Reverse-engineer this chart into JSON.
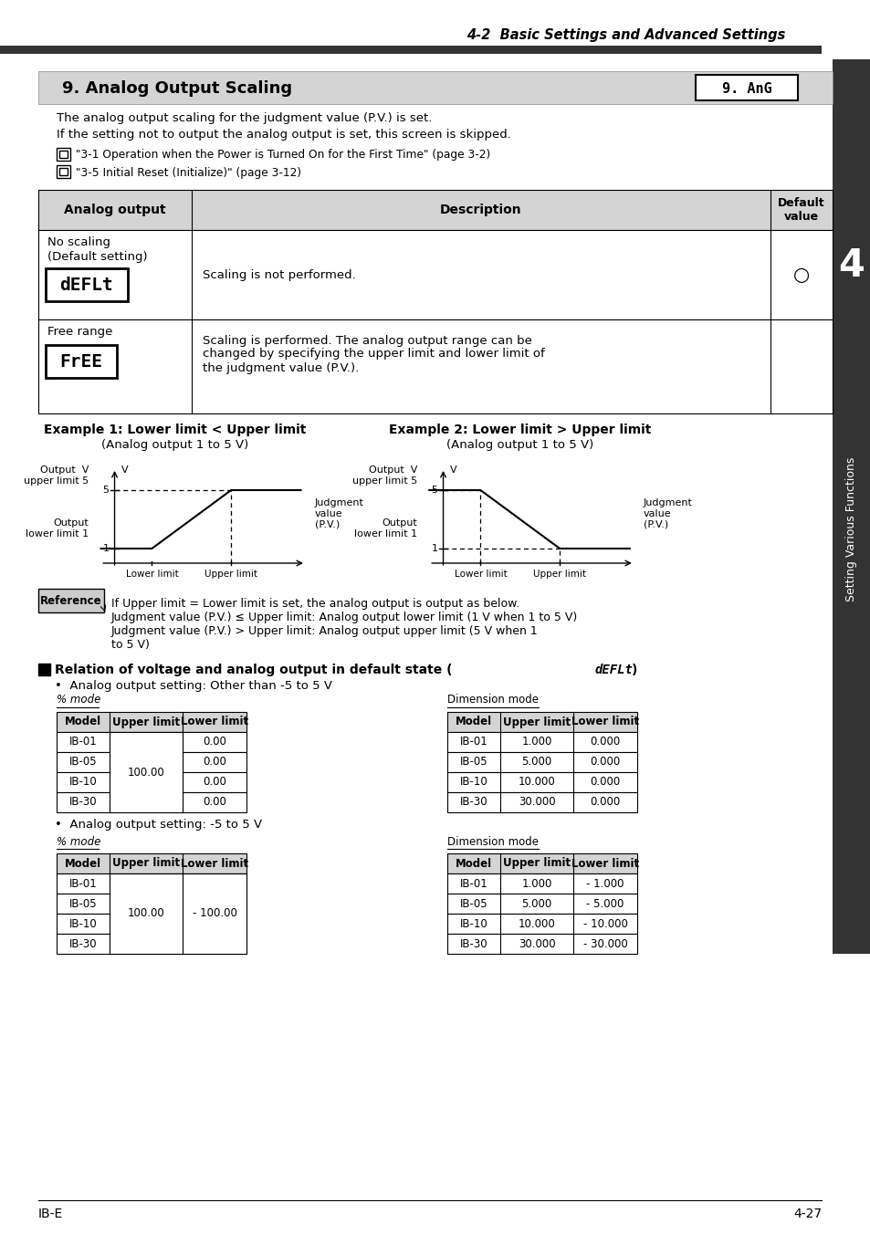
{
  "page_title": "4-2  Basic Settings and Advanced Settings",
  "section_title": "9. Analog Output Scaling",
  "lcd_display": "9. AnG",
  "intro_lines": [
    "The analog output scaling for the judgment value (P.V.) is set.",
    "If the setting not to output the analog output is set, this screen is skipped."
  ],
  "table_headers": [
    "Analog output",
    "Description",
    "Default\nvalue"
  ],
  "example1_title": "Example 1: Lower limit < Upper limit",
  "example1_sub": "(Analog output 1 to 5 V)",
  "example2_title": "Example 2: Lower limit > Upper limit",
  "example2_sub": "(Analog output 1 to 5 V)",
  "reference_text": "If Upper limit = Lower limit is set, the analog output is output as below.\nJudgment value (P.V.) ≤ Upper limit: Analog output lower limit (1 V when 1 to 5 V)\nJudgment value (P.V.) > Upper limit: Analog output upper limit (5 V when 1\nto 5 V)",
  "bullet1": "Analog output setting: Other than -5 to 5 V",
  "bullet2": "Analog output setting: -5 to 5 V",
  "table1_pct_rows": [
    [
      "IB-01",
      "",
      "0.00"
    ],
    [
      "IB-05",
      "100.00",
      "0.00"
    ],
    [
      "IB-10",
      "",
      "0.00"
    ],
    [
      "IB-30",
      "",
      "0.00"
    ]
  ],
  "table1_dim_rows": [
    [
      "IB-01",
      "1.000",
      "0.000"
    ],
    [
      "IB-05",
      "5.000",
      "0.000"
    ],
    [
      "IB-10",
      "10.000",
      "0.000"
    ],
    [
      "IB-30",
      "30.000",
      "0.000"
    ]
  ],
  "table2_pct_rows": [
    [
      "IB-01",
      "",
      ""
    ],
    [
      "IB-05",
      "100.00",
      "- 100.00"
    ],
    [
      "IB-10",
      "",
      ""
    ],
    [
      "IB-30",
      "",
      ""
    ]
  ],
  "table2_dim_rows": [
    [
      "IB-01",
      "1.000",
      "- 1.000"
    ],
    [
      "IB-05",
      "5.000",
      "- 5.000"
    ],
    [
      "IB-10",
      "10.000",
      "- 10.000"
    ],
    [
      "IB-30",
      "30.000",
      "- 30.000"
    ]
  ],
  "footer_left": "IB-E",
  "footer_right": "4-27",
  "sidebar_text": "Setting Various Functions",
  "chapter_num": "4",
  "bg_color": "#ffffff",
  "header_bar_color": "#333333",
  "section_header_bg": "#d4d4d4",
  "table_header_bg": "#d4d4d4",
  "sidebar_bg": "#333333"
}
